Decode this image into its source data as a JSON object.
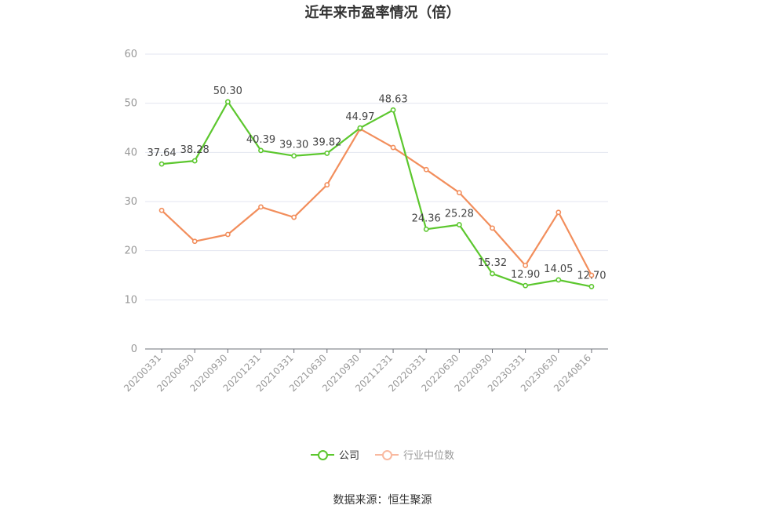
{
  "title": "近年来市盈率情况（倍）",
  "source": "数据来源：恒生聚源",
  "chart_data": {
    "type": "line",
    "categories": [
      "20200331",
      "20200630",
      "20200930",
      "20201231",
      "20210331",
      "20210630",
      "20210930",
      "20211231",
      "20220331",
      "20220630",
      "20220930",
      "20230331",
      "20230630",
      "20240816"
    ],
    "ylim": [
      0,
      60
    ],
    "yticks": [
      0,
      10,
      20,
      30,
      40,
      50,
      60
    ],
    "grid": true,
    "legend_position": "bottom",
    "series": [
      {
        "name": "公司",
        "color": "#5cc72e",
        "labeled": true,
        "values": [
          37.64,
          38.28,
          50.3,
          40.39,
          39.3,
          39.82,
          44.97,
          48.63,
          24.36,
          25.28,
          15.32,
          12.9,
          14.05,
          12.7
        ]
      },
      {
        "name": "行业中位数",
        "color": "#f28e5c",
        "labeled": false,
        "values": [
          28.2,
          21.9,
          23.3,
          28.9,
          26.8,
          33.4,
          44.8,
          41.0,
          36.5,
          31.8,
          24.6,
          17.0,
          27.8,
          15.0
        ]
      }
    ]
  }
}
